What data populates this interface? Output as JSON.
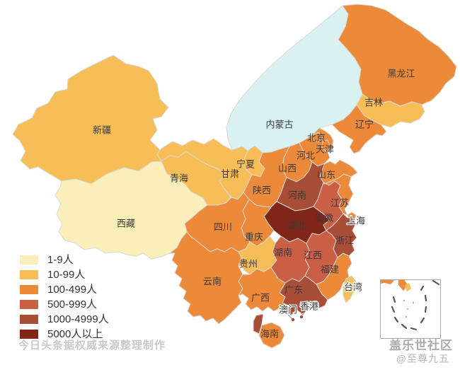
{
  "map": {
    "provinces": [
      {
        "id": "inner-mongolia",
        "name": "内蒙古",
        "category": null
      },
      {
        "id": "xinjiang",
        "name": "新疆",
        "category": "10-99人"
      },
      {
        "id": "tibet",
        "name": "西藏",
        "category": "1-9人"
      },
      {
        "id": "qinghai",
        "name": "青海",
        "category": "10-99人"
      },
      {
        "id": "gansu",
        "name": "甘肃",
        "category": "10-99人"
      },
      {
        "id": "ningxia",
        "name": "宁夏",
        "category": "10-99人"
      },
      {
        "id": "heilongjiang",
        "name": "黑龙江",
        "category": "100-499人"
      },
      {
        "id": "jilin",
        "name": "吉林",
        "category": "10-99人"
      },
      {
        "id": "liaoning",
        "name": "辽宁",
        "category": "100-499人"
      },
      {
        "id": "hebei",
        "name": "河北",
        "category": "100-499人"
      },
      {
        "id": "shanxi",
        "name": "山西",
        "category": "100-499人"
      },
      {
        "id": "shaanxi",
        "name": "陕西",
        "category": "100-499人"
      },
      {
        "id": "shandong",
        "name": "山东",
        "category": "100-499人"
      },
      {
        "id": "henan",
        "name": "河南",
        "category": "1000-4999人"
      },
      {
        "id": "hubei",
        "name": "湖北",
        "category": "5000人以上"
      },
      {
        "id": "chongqing",
        "name": "重庆",
        "category": "100-499人"
      },
      {
        "id": "sichuan",
        "name": "四川",
        "category": "100-499人"
      },
      {
        "id": "yunnan",
        "name": "云南",
        "category": "100-499人"
      },
      {
        "id": "guizhou",
        "name": "贵州",
        "category": "10-99人"
      },
      {
        "id": "hunan",
        "name": "湖南",
        "category": "500-999人"
      },
      {
        "id": "jiangxi",
        "name": "江西",
        "category": "500-999人"
      },
      {
        "id": "anhui",
        "name": "安徽",
        "category": "500-999人"
      },
      {
        "id": "jiangsu",
        "name": "江苏",
        "category": "100-499人"
      },
      {
        "id": "shanghai",
        "name": "上海",
        "category": "100-499人"
      },
      {
        "id": "zhejiang",
        "name": "浙江",
        "category": "1000-4999人"
      },
      {
        "id": "fujian",
        "name": "福建",
        "category": "100-499人"
      },
      {
        "id": "taiwan",
        "name": "台湾",
        "category": "10-99人"
      },
      {
        "id": "guangdong",
        "name": "广东",
        "category": "1000-4999人"
      },
      {
        "id": "guangxi",
        "name": "广西",
        "category": "100-499人"
      },
      {
        "id": "hainan",
        "name": "海南",
        "category": "100-499人"
      },
      {
        "id": "beijing",
        "name": "北京",
        "category": "100-499人"
      },
      {
        "id": "tianjin",
        "name": "天津",
        "category": "100-499人"
      },
      {
        "id": "hong-kong",
        "name": "香港",
        "category": null
      },
      {
        "id": "macau",
        "name": "澳门",
        "category": null
      }
    ],
    "colors": {
      "no_data": "#D9F2F1",
      "border": "#D8D8D8",
      "label_text": "#3A3A3A",
      "hk_mo_dot": "#9C4A38",
      "inset_border": "#A9A9A9",
      "inset_dash": "#555555"
    }
  },
  "legend": {
    "items": [
      {
        "label": "1-9人",
        "color": "#FBEFB9"
      },
      {
        "label": "10-99人",
        "color": "#F7BE57"
      },
      {
        "label": "100-499人",
        "color": "#EC8A39"
      },
      {
        "label": "500-999人",
        "color": "#C95F44"
      },
      {
        "label": "1000-4999人",
        "color": "#A84D36"
      },
      {
        "label": "5000人以上",
        "color": "#812518"
      }
    ]
  },
  "watermarks": {
    "source_note": "今日头条据权威来源整理制作",
    "community": "盖乐世社区",
    "author": "@至尊九五"
  }
}
